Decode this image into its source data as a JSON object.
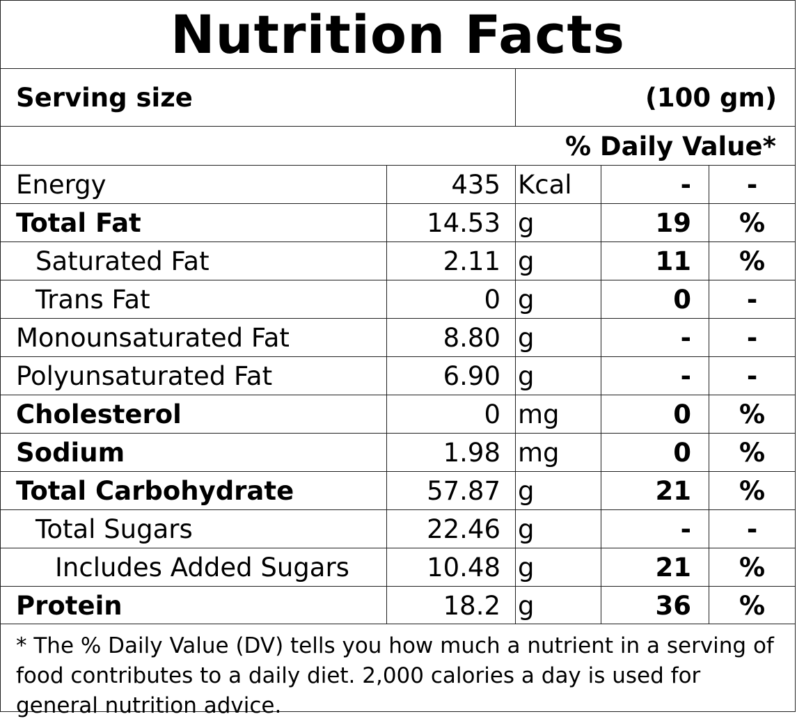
{
  "title": "Nutrition Facts",
  "serving": {
    "label": "Serving size",
    "value": "(100 gm)"
  },
  "daily_value_header": "% Daily Value*",
  "nutrients": [
    {
      "name": "Energy",
      "amount": "435",
      "unit": "Kcal",
      "dv": "-",
      "pct": "-",
      "bold": false,
      "indent": 0
    },
    {
      "name": "Total Fat",
      "amount": "14.53",
      "unit": "g",
      "dv": "19",
      "pct": "%",
      "bold": true,
      "indent": 0
    },
    {
      "name": "Saturated Fat",
      "amount": "2.11",
      "unit": "g",
      "dv": "11",
      "pct": "%",
      "bold": false,
      "indent": 1
    },
    {
      "name": "Trans Fat",
      "amount": "0",
      "unit": "g",
      "dv": "0",
      "pct": "-",
      "bold": false,
      "indent": 1
    },
    {
      "name": "Monounsaturated Fat",
      "amount": "8.80",
      "unit": "g",
      "dv": "-",
      "pct": "-",
      "bold": false,
      "indent": 0
    },
    {
      "name": "Polyunsaturated Fat",
      "amount": "6.90",
      "unit": "g",
      "dv": "-",
      "pct": "-",
      "bold": false,
      "indent": 0
    },
    {
      "name": "Cholesterol",
      "amount": "0",
      "unit": "mg",
      "dv": "0",
      "pct": "%",
      "bold": true,
      "indent": 0
    },
    {
      "name": "Sodium",
      "amount": "1.98",
      "unit": "mg",
      "dv": "0",
      "pct": "%",
      "bold": true,
      "indent": 0
    },
    {
      "name": "Total Carbohydrate",
      "amount": "57.87",
      "unit": "g",
      "dv": "21",
      "pct": "%",
      "bold": true,
      "indent": 0
    },
    {
      "name": "Total Sugars",
      "amount": "22.46",
      "unit": "g",
      "dv": "-",
      "pct": "-",
      "bold": false,
      "indent": 1
    },
    {
      "name": "Includes Added Sugars",
      "amount": "10.48",
      "unit": "g",
      "dv": "21",
      "pct": "%",
      "bold": false,
      "indent": 2
    },
    {
      "name": "Protein",
      "amount": "18.2",
      "unit": "g",
      "dv": "36",
      "pct": "%",
      "bold": true,
      "indent": 0
    }
  ],
  "footnote": "* The % Daily Value (DV) tells you how much a nutrient in a serving of food contributes to a daily diet. 2,000 calories a day is used for general nutrition advice."
}
